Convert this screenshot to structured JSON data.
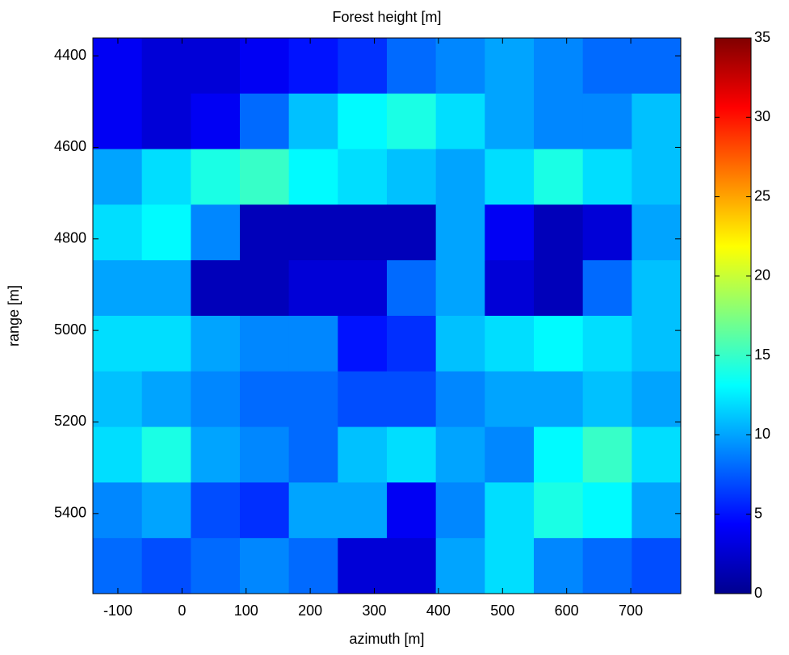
{
  "chart_data": {
    "type": "heatmap",
    "title": "Forest height [m]",
    "xlabel": "azimuth [m]",
    "ylabel": "range [m]",
    "xlim": [
      -139,
      778
    ],
    "ylim": [
      4361,
      5575
    ],
    "y_reversed": true,
    "xticks": [
      -100,
      0,
      100,
      200,
      300,
      400,
      500,
      600,
      700
    ],
    "yticks": [
      4400,
      4600,
      4800,
      5000,
      5200,
      5400
    ],
    "clim": [
      0,
      35
    ],
    "cticks": [
      0,
      5,
      10,
      15,
      20,
      25,
      30,
      35
    ],
    "colormap": "jet",
    "z": [
      [
        4,
        3,
        3,
        4,
        5,
        6,
        8,
        9,
        10,
        9,
        8,
        8
      ],
      [
        4,
        3,
        4,
        8,
        11,
        13,
        14,
        12,
        10,
        9,
        9,
        11
      ],
      [
        10,
        12,
        14,
        15,
        13,
        12,
        11,
        10,
        12,
        14,
        12,
        11
      ],
      [
        12,
        13,
        9,
        2,
        2,
        2,
        2,
        10,
        4,
        2,
        3,
        10
      ],
      [
        10,
        10,
        2,
        2,
        3,
        3,
        8,
        10,
        3,
        2,
        8,
        11
      ],
      [
        12,
        12,
        10,
        9,
        9,
        5,
        6,
        11,
        12,
        13,
        12,
        11
      ],
      [
        11,
        10,
        9,
        8,
        8,
        7,
        7,
        9,
        10,
        10,
        11,
        10
      ],
      [
        12,
        14,
        10,
        9,
        8,
        11,
        12,
        10,
        9,
        13,
        15,
        12
      ],
      [
        9,
        10,
        7,
        6,
        10,
        10,
        4,
        9,
        12,
        14,
        13,
        10
      ],
      [
        8,
        7,
        8,
        9,
        8,
        3,
        3,
        10,
        12,
        9,
        8,
        7
      ]
    ]
  }
}
